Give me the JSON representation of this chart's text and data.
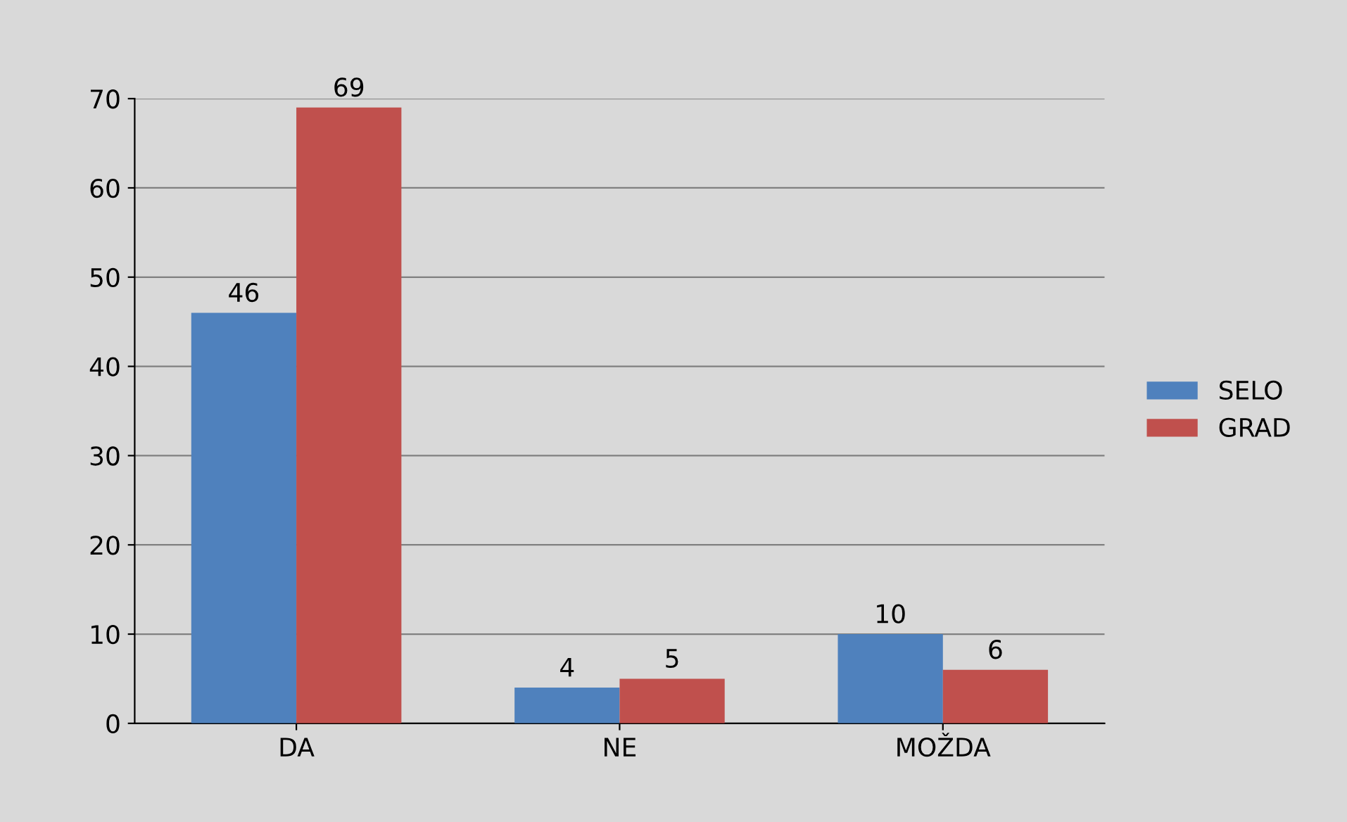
{
  "chart_data": {
    "type": "bar",
    "categories": [
      "DA",
      "NE",
      "MOŽDA"
    ],
    "series": [
      {
        "name": "SELO",
        "color": "#4f81bd",
        "values": [
          46,
          4,
          10
        ]
      },
      {
        "name": "GRAD",
        "color": "#c0504d",
        "values": [
          69,
          5,
          6
        ]
      }
    ],
    "ylim": [
      0,
      70
    ],
    "yticks": [
      0,
      10,
      20,
      30,
      40,
      50,
      60,
      70
    ],
    "grid": "y",
    "legend": "right",
    "data_labels": true
  }
}
